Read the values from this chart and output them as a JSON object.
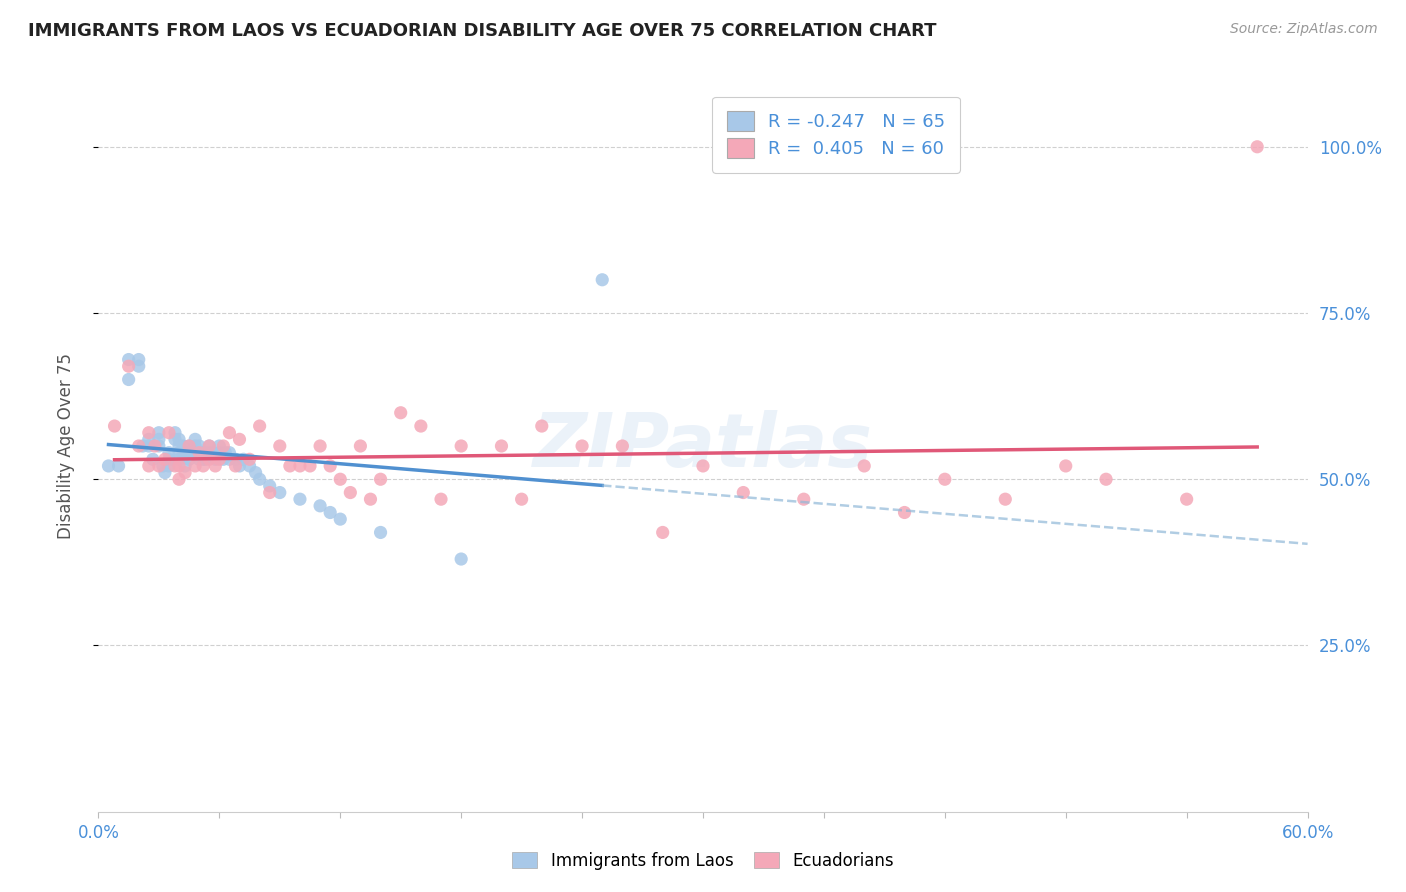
{
  "title": "IMMIGRANTS FROM LAOS VS ECUADORIAN DISABILITY AGE OVER 75 CORRELATION CHART",
  "source": "Source: ZipAtlas.com",
  "ylabel": "Disability Age Over 75",
  "xlim": [
    0.0,
    0.6
  ],
  "ylim": [
    0.0,
    1.1
  ],
  "ytick_labels": [
    "25.0%",
    "50.0%",
    "75.0%",
    "100.0%"
  ],
  "ytick_values": [
    0.25,
    0.5,
    0.75,
    1.0
  ],
  "xtick_values": [
    0.0,
    0.06,
    0.12,
    0.18,
    0.24,
    0.3,
    0.36,
    0.42,
    0.48,
    0.54,
    0.6
  ],
  "legend_blue_R": "-0.247",
  "legend_blue_N": "65",
  "legend_pink_R": "0.405",
  "legend_pink_N": "60",
  "blue_scatter_color": "#a8c8e8",
  "pink_scatter_color": "#f4a8b8",
  "blue_line_color": "#5090d0",
  "pink_line_color": "#e05878",
  "blue_line_color_dash": "#90b8d8",
  "watermark": "ZIPatlas",
  "blue_scatter_x": [
    0.005,
    0.01,
    0.015,
    0.015,
    0.02,
    0.02,
    0.022,
    0.025,
    0.025,
    0.027,
    0.03,
    0.03,
    0.03,
    0.032,
    0.033,
    0.035,
    0.035,
    0.035,
    0.038,
    0.038,
    0.04,
    0.04,
    0.04,
    0.04,
    0.042,
    0.042,
    0.043,
    0.045,
    0.045,
    0.045,
    0.047,
    0.048,
    0.048,
    0.05,
    0.05,
    0.05,
    0.052,
    0.052,
    0.053,
    0.053,
    0.055,
    0.055,
    0.057,
    0.058,
    0.06,
    0.06,
    0.062,
    0.063,
    0.065,
    0.065,
    0.068,
    0.07,
    0.072,
    0.075,
    0.078,
    0.08,
    0.085,
    0.09,
    0.1,
    0.11,
    0.115,
    0.12,
    0.14,
    0.18,
    0.25
  ],
  "blue_scatter_y": [
    0.52,
    0.52,
    0.65,
    0.68,
    0.67,
    0.68,
    0.55,
    0.55,
    0.56,
    0.53,
    0.55,
    0.56,
    0.57,
    0.52,
    0.51,
    0.52,
    0.53,
    0.54,
    0.56,
    0.57,
    0.53,
    0.54,
    0.55,
    0.56,
    0.54,
    0.55,
    0.52,
    0.53,
    0.54,
    0.55,
    0.54,
    0.55,
    0.56,
    0.53,
    0.54,
    0.55,
    0.53,
    0.54,
    0.53,
    0.54,
    0.54,
    0.55,
    0.54,
    0.53,
    0.54,
    0.55,
    0.53,
    0.54,
    0.53,
    0.54,
    0.53,
    0.52,
    0.53,
    0.52,
    0.51,
    0.5,
    0.49,
    0.48,
    0.47,
    0.46,
    0.45,
    0.44,
    0.42,
    0.38,
    0.8
  ],
  "pink_scatter_x": [
    0.008,
    0.015,
    0.02,
    0.025,
    0.025,
    0.028,
    0.03,
    0.033,
    0.035,
    0.038,
    0.04,
    0.04,
    0.043,
    0.045,
    0.048,
    0.05,
    0.052,
    0.055,
    0.055,
    0.058,
    0.06,
    0.062,
    0.065,
    0.068,
    0.07,
    0.075,
    0.08,
    0.085,
    0.09,
    0.095,
    0.1,
    0.105,
    0.11,
    0.115,
    0.12,
    0.125,
    0.13,
    0.135,
    0.14,
    0.15,
    0.16,
    0.17,
    0.18,
    0.2,
    0.21,
    0.22,
    0.24,
    0.26,
    0.28,
    0.3,
    0.32,
    0.35,
    0.38,
    0.4,
    0.42,
    0.45,
    0.48,
    0.5,
    0.54,
    0.575
  ],
  "pink_scatter_y": [
    0.58,
    0.67,
    0.55,
    0.52,
    0.57,
    0.55,
    0.52,
    0.53,
    0.57,
    0.52,
    0.5,
    0.52,
    0.51,
    0.55,
    0.52,
    0.54,
    0.52,
    0.53,
    0.55,
    0.52,
    0.53,
    0.55,
    0.57,
    0.52,
    0.56,
    0.53,
    0.58,
    0.48,
    0.55,
    0.52,
    0.52,
    0.52,
    0.55,
    0.52,
    0.5,
    0.48,
    0.55,
    0.47,
    0.5,
    0.6,
    0.58,
    0.47,
    0.55,
    0.55,
    0.47,
    0.58,
    0.55,
    0.55,
    0.42,
    0.52,
    0.48,
    0.47,
    0.52,
    0.45,
    0.5,
    0.47,
    0.52,
    0.5,
    0.47,
    1.0
  ]
}
